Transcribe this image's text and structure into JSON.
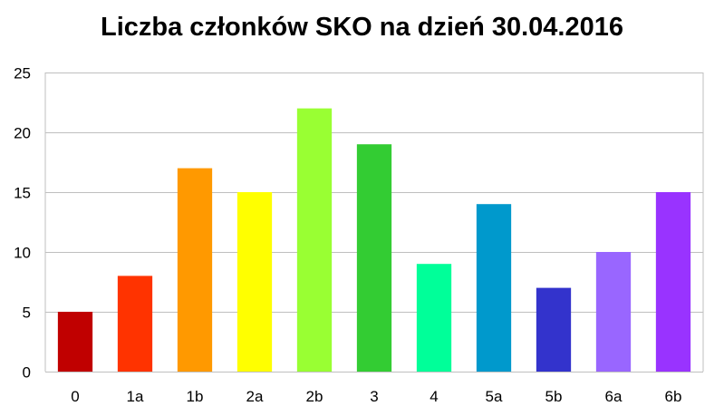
{
  "chart_data": {
    "type": "bar",
    "title": "Liczba członków SKO na dzień 30.04.2016",
    "xlabel": "",
    "ylabel": "",
    "categories": [
      "0",
      "1a",
      "1b",
      "2a",
      "2b",
      "3",
      "4",
      "5a",
      "5b",
      "6a",
      "6b"
    ],
    "values": [
      5,
      8,
      17,
      15,
      22,
      19,
      9,
      14,
      7,
      10,
      15
    ],
    "colors": [
      "#C00000",
      "#FF3300",
      "#FF9900",
      "#FFFF00",
      "#99FF33",
      "#33CC33",
      "#00FF99",
      "#0099CC",
      "#3333CC",
      "#9966FF",
      "#9933FF"
    ],
    "ylim": [
      0,
      25
    ],
    "yticks": [
      "0",
      "5",
      "10",
      "15",
      "20",
      "25"
    ],
    "grid": true,
    "legend": "none"
  }
}
